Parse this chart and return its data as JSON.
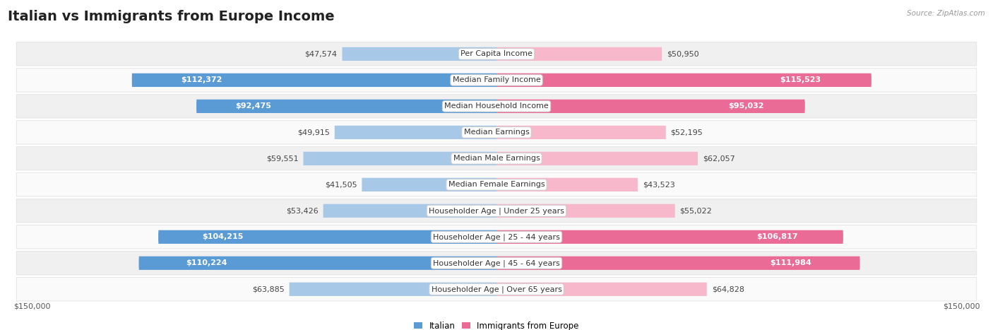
{
  "title": "Italian vs Immigrants from Europe Income",
  "source": "Source: ZipAtlas.com",
  "categories": [
    "Per Capita Income",
    "Median Family Income",
    "Median Household Income",
    "Median Earnings",
    "Median Male Earnings",
    "Median Female Earnings",
    "Householder Age | Under 25 years",
    "Householder Age | 25 - 44 years",
    "Householder Age | 45 - 64 years",
    "Householder Age | Over 65 years"
  ],
  "italian_values": [
    47574,
    112372,
    92475,
    49915,
    59551,
    41505,
    53426,
    104215,
    110224,
    63885
  ],
  "immigrant_values": [
    50950,
    115523,
    95032,
    52195,
    62057,
    43523,
    55022,
    106817,
    111984,
    64828
  ],
  "italian_labels": [
    "$47,574",
    "$112,372",
    "$92,475",
    "$49,915",
    "$59,551",
    "$41,505",
    "$53,426",
    "$104,215",
    "$110,224",
    "$63,885"
  ],
  "immigrant_labels": [
    "$50,950",
    "$115,523",
    "$95,032",
    "$52,195",
    "$62,057",
    "$43,523",
    "$55,022",
    "$106,817",
    "$111,984",
    "$64,828"
  ],
  "italian_color_light": "#a8c8e8",
  "italian_color_dark": "#5b9bd5",
  "immigrant_color_light": "#f7b8cc",
  "immigrant_color_dark": "#e96b96",
  "max_value": 150000,
  "bg_color": "#ffffff",
  "row_bg_odd": "#f0f0f0",
  "row_bg_even": "#fafafa",
  "label_threshold": 75000,
  "legend_italian": "Italian",
  "legend_immigrant": "Immigrants from Europe",
  "title_fontsize": 14,
  "label_fontsize": 8,
  "cat_fontsize": 8
}
